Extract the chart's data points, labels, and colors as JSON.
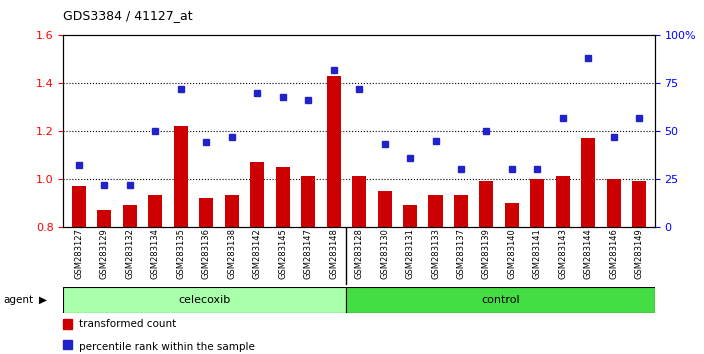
{
  "title": "GDS3384 / 41127_at",
  "samples": [
    "GSM283127",
    "GSM283129",
    "GSM283132",
    "GSM283134",
    "GSM283135",
    "GSM283136",
    "GSM283138",
    "GSM283142",
    "GSM283145",
    "GSM283147",
    "GSM283148",
    "GSM283128",
    "GSM283130",
    "GSM283131",
    "GSM283133",
    "GSM283137",
    "GSM283139",
    "GSM283140",
    "GSM283141",
    "GSM283143",
    "GSM283144",
    "GSM283146",
    "GSM283149"
  ],
  "bar_values": [
    0.97,
    0.87,
    0.89,
    0.93,
    1.22,
    0.92,
    0.93,
    1.07,
    1.05,
    1.01,
    1.43,
    1.01,
    0.95,
    0.89,
    0.93,
    0.93,
    0.99,
    0.9,
    1.0,
    1.01,
    1.17,
    1.0,
    0.99
  ],
  "percentile_values": [
    32,
    22,
    22,
    50,
    72,
    44,
    47,
    70,
    68,
    66,
    82,
    72,
    43,
    36,
    45,
    30,
    50,
    30,
    30,
    57,
    88,
    47,
    57
  ],
  "celecoxib_count": 11,
  "control_count": 12,
  "ylim_left": [
    0.8,
    1.6
  ],
  "ylim_right": [
    0,
    100
  ],
  "yticks_left": [
    0.8,
    1.0,
    1.2,
    1.4,
    1.6
  ],
  "yticks_right": [
    0,
    25,
    50,
    75,
    100
  ],
  "bar_color": "#cc0000",
  "dot_color": "#2222cc",
  "bg_celecoxib": "#aaffaa",
  "bg_control": "#44dd44",
  "agent_label": "agent",
  "celecoxib_label": "celecoxib",
  "control_label": "control",
  "legend_bar_label": "transformed count",
  "legend_dot_label": "percentile rank within the sample"
}
